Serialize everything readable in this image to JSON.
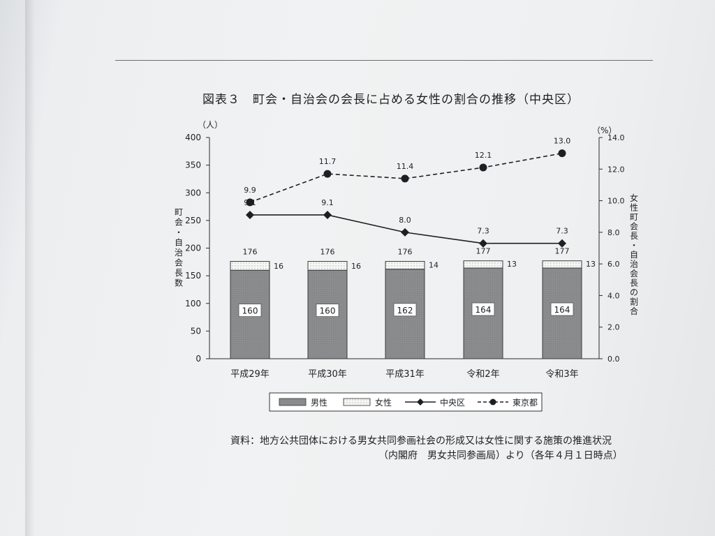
{
  "page": {
    "figure_title": "図表３　町会・自治会の会長に占める女性の割合の推移（中央区）",
    "source_line1": "資料：地方公共団体における男女共同参画社会の形成又は女性に関する施策の推進状況",
    "source_line2": "（内閣府　男女共同参画局）より（各年４月１日時点）"
  },
  "chart_data": {
    "type": "bar",
    "title": "図表３　町会・自治会の会長に占める女性の割合の推移（中央区）",
    "categories": [
      "平成29年",
      "平成30年",
      "平成31年",
      "令和2年",
      "令和3年"
    ],
    "stacked_series": [
      {
        "name": "男性",
        "values": [
          160,
          160,
          162,
          164,
          164
        ],
        "color": "#8a8c8e"
      },
      {
        "name": "女性",
        "values": [
          16,
          16,
          14,
          13,
          13
        ],
        "color": "#f4f4f2"
      }
    ],
    "totals": [
      176,
      176,
      176,
      177,
      177
    ],
    "line_series": [
      {
        "name": "中央区",
        "values": [
          9.1,
          9.1,
          8.0,
          7.3,
          7.3
        ],
        "labels": [
          "9.1",
          "9.1",
          "8.0",
          "7.3",
          "7.3"
        ],
        "style": "solid",
        "marker": "diamond"
      },
      {
        "name": "東京都",
        "values": [
          9.9,
          11.7,
          11.4,
          12.1,
          13.0
        ],
        "labels": [
          "9.9",
          "11.7",
          "11.4",
          "12.1",
          "13.0"
        ],
        "style": "dashed",
        "marker": "circle"
      }
    ],
    "left_axis": {
      "label": "町会・自治会長数",
      "unit": "（人）",
      "range": [
        0,
        400
      ],
      "ticks": [
        "0",
        "50",
        "100",
        "150",
        "200",
        "250",
        "300",
        "350",
        "400"
      ]
    },
    "right_axis": {
      "label": "女性町会長・自治会長の割合",
      "unit": "（%）",
      "range": [
        0,
        14
      ],
      "ticks": [
        "0.0",
        "2.0",
        "4.0",
        "6.0",
        "8.0",
        "10.0",
        "12.0",
        "14.0"
      ]
    },
    "legend_position": "bottom",
    "legend": [
      {
        "label": "男性",
        "kind": "bar",
        "series": "男性"
      },
      {
        "label": "女性",
        "kind": "bar",
        "series": "女性"
      },
      {
        "label": "中央区",
        "kind": "line",
        "series": "中央区"
      },
      {
        "label": "東京都",
        "kind": "line",
        "series": "東京都"
      }
    ],
    "grid": false
  }
}
